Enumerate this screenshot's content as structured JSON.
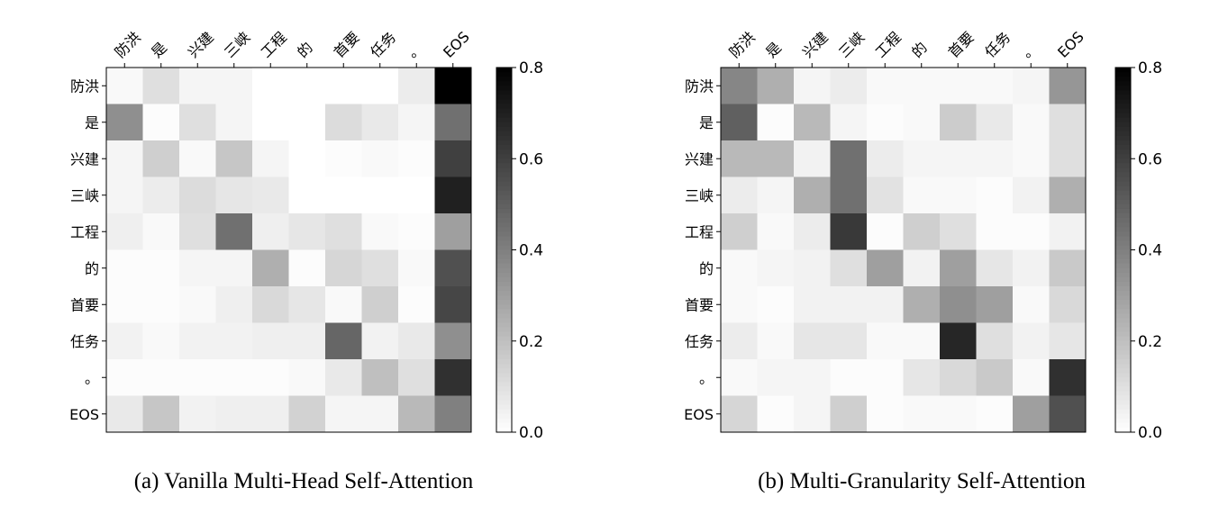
{
  "chart_data": [
    {
      "type": "heatmap",
      "caption": "(a) Vanilla Multi-Head Self-Attention",
      "x_labels": [
        "防洪",
        "是",
        "兴建",
        "三峡",
        "工程",
        "的",
        "首要",
        "任务",
        "。",
        "EOS"
      ],
      "y_labels": [
        "防洪",
        "是",
        "兴建",
        "三峡",
        "工程",
        "的",
        "首要",
        "任务",
        "。",
        "EOS"
      ],
      "colormap": "gray_r",
      "color_range": [
        0.0,
        0.8
      ],
      "colorbar_ticks": [
        "0.0",
        "0.2",
        "0.4",
        "0.6",
        "0.8"
      ],
      "values": [
        [
          0.02,
          0.1,
          0.03,
          0.03,
          0.0,
          0.0,
          0.0,
          0.0,
          0.06,
          0.8
        ],
        [
          0.35,
          0.01,
          0.1,
          0.03,
          0.0,
          0.0,
          0.11,
          0.07,
          0.03,
          0.45
        ],
        [
          0.03,
          0.15,
          0.02,
          0.18,
          0.03,
          0.0,
          0.01,
          0.02,
          0.01,
          0.6
        ],
        [
          0.03,
          0.06,
          0.11,
          0.08,
          0.07,
          0.0,
          0.0,
          0.0,
          0.0,
          0.7
        ],
        [
          0.05,
          0.02,
          0.1,
          0.45,
          0.05,
          0.08,
          0.1,
          0.02,
          0.01,
          0.3
        ],
        [
          0.01,
          0.01,
          0.03,
          0.03,
          0.25,
          0.01,
          0.13,
          0.1,
          0.02,
          0.55
        ],
        [
          0.01,
          0.01,
          0.02,
          0.05,
          0.12,
          0.08,
          0.02,
          0.15,
          0.01,
          0.58
        ],
        [
          0.04,
          0.02,
          0.04,
          0.04,
          0.05,
          0.05,
          0.48,
          0.04,
          0.07,
          0.35
        ],
        [
          0.01,
          0.01,
          0.01,
          0.01,
          0.01,
          0.02,
          0.07,
          0.2,
          0.1,
          0.65
        ],
        [
          0.07,
          0.18,
          0.04,
          0.05,
          0.05,
          0.14,
          0.03,
          0.03,
          0.22,
          0.4
        ]
      ]
    },
    {
      "type": "heatmap",
      "caption": "(b) Multi-Granularity Self-Attention",
      "x_labels": [
        "防洪",
        "是",
        "兴建",
        "三峡",
        "工程",
        "的",
        "首要",
        "任务",
        "。",
        "EOS"
      ],
      "y_labels": [
        "防洪",
        "是",
        "兴建",
        "三峡",
        "工程",
        "的",
        "首要",
        "任务",
        "。",
        "EOS"
      ],
      "colormap": "gray_r",
      "color_range": [
        0.0,
        0.8
      ],
      "colorbar_ticks": [
        "0.0",
        "0.2",
        "0.4",
        "0.6",
        "0.8"
      ],
      "values": [
        [
          0.38,
          0.25,
          0.03,
          0.06,
          0.02,
          0.02,
          0.02,
          0.02,
          0.03,
          0.33
        ],
        [
          0.5,
          0.01,
          0.22,
          0.03,
          0.01,
          0.02,
          0.16,
          0.07,
          0.02,
          0.1
        ],
        [
          0.22,
          0.22,
          0.04,
          0.45,
          0.06,
          0.03,
          0.03,
          0.03,
          0.02,
          0.1
        ],
        [
          0.06,
          0.03,
          0.25,
          0.45,
          0.09,
          0.02,
          0.02,
          0.01,
          0.04,
          0.25
        ],
        [
          0.15,
          0.02,
          0.06,
          0.62,
          0.01,
          0.15,
          0.1,
          0.01,
          0.01,
          0.04
        ],
        [
          0.02,
          0.03,
          0.04,
          0.1,
          0.3,
          0.04,
          0.3,
          0.08,
          0.04,
          0.17
        ],
        [
          0.02,
          0.01,
          0.04,
          0.04,
          0.04,
          0.25,
          0.35,
          0.3,
          0.02,
          0.12
        ],
        [
          0.06,
          0.02,
          0.08,
          0.08,
          0.02,
          0.02,
          0.68,
          0.1,
          0.04,
          0.08
        ],
        [
          0.02,
          0.03,
          0.03,
          0.01,
          0.01,
          0.08,
          0.12,
          0.17,
          0.02,
          0.65
        ],
        [
          0.13,
          0.01,
          0.03,
          0.15,
          0.01,
          0.02,
          0.02,
          0.01,
          0.3,
          0.55
        ]
      ]
    }
  ]
}
